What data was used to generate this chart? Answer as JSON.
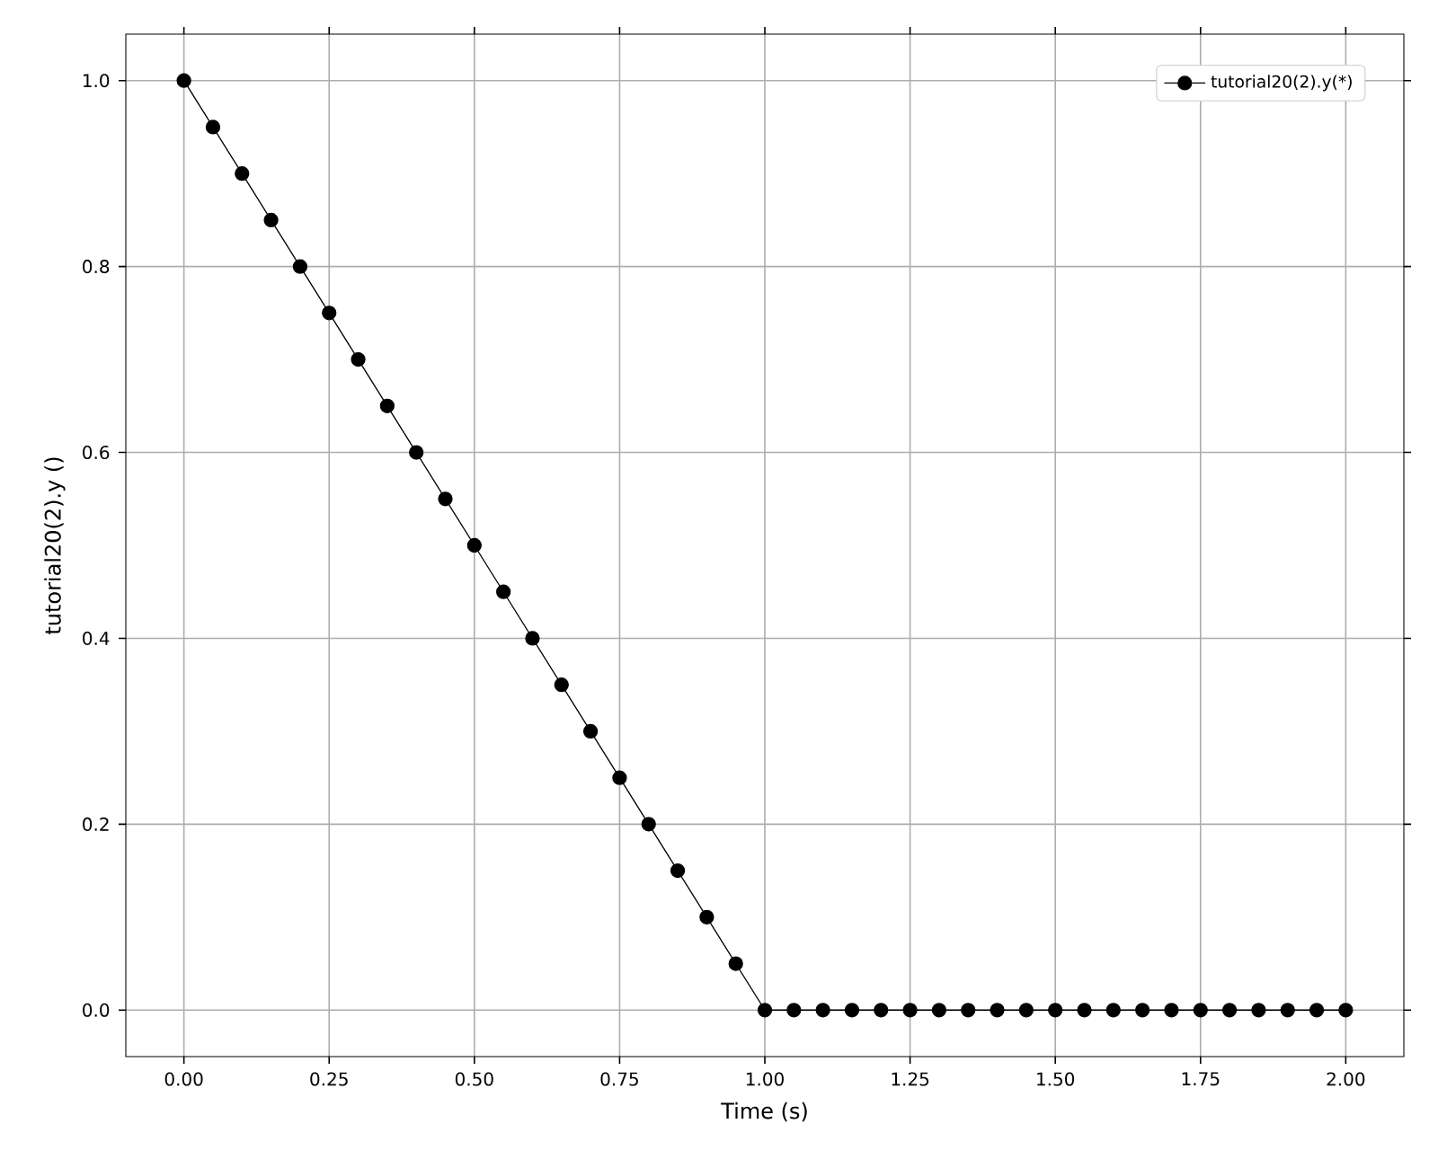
{
  "chart_data": {
    "type": "line",
    "xlabel": "Time (s)",
    "ylabel": "tutorial20(2).y ()",
    "x": [
      0.0,
      0.05,
      0.1,
      0.15,
      0.2,
      0.25,
      0.3,
      0.35,
      0.4,
      0.45,
      0.5,
      0.55,
      0.6,
      0.65,
      0.7,
      0.75,
      0.8,
      0.85,
      0.9,
      0.95,
      1.0,
      1.05,
      1.1,
      1.15,
      1.2,
      1.25,
      1.3,
      1.35,
      1.4,
      1.45,
      1.5,
      1.55,
      1.6,
      1.65,
      1.7,
      1.75,
      1.8,
      1.85,
      1.9,
      1.95,
      2.0
    ],
    "series": [
      {
        "name": "tutorial20(2).y(*)",
        "color": "#000000",
        "values": [
          1.0,
          0.95,
          0.9,
          0.85,
          0.8,
          0.75,
          0.7,
          0.65,
          0.6,
          0.55,
          0.5,
          0.45,
          0.4,
          0.35,
          0.3,
          0.25,
          0.2,
          0.15,
          0.1,
          0.05,
          0.0,
          0.0,
          0.0,
          0.0,
          0.0,
          0.0,
          0.0,
          0.0,
          0.0,
          0.0,
          0.0,
          0.0,
          0.0,
          0.0,
          0.0,
          0.0,
          0.0,
          0.0,
          0.0,
          0.0,
          0.0
        ]
      }
    ],
    "xlim": [
      -0.1,
      2.1
    ],
    "ylim": [
      -0.05,
      1.05
    ],
    "xticks": [
      {
        "value": 0,
        "label": "0.00"
      },
      {
        "value": 0.25,
        "label": "0.25"
      },
      {
        "value": 0.5,
        "label": "0.50"
      },
      {
        "value": 0.75,
        "label": "0.75"
      },
      {
        "value": 1.0,
        "label": "1.00"
      },
      {
        "value": 1.25,
        "label": "1.25"
      },
      {
        "value": 1.5,
        "label": "1.50"
      },
      {
        "value": 1.75,
        "label": "1.75"
      },
      {
        "value": 2.0,
        "label": "2.00"
      }
    ],
    "yticks": [
      {
        "value": 0,
        "label": "0.0"
      },
      {
        "value": 0.2,
        "label": "0.2"
      },
      {
        "value": 0.4,
        "label": "0.4"
      },
      {
        "value": 0.6,
        "label": "0.6"
      },
      {
        "value": 0.8,
        "label": "0.8"
      },
      {
        "value": 1.0,
        "label": "1.0"
      }
    ],
    "grid": true,
    "legend": "top right",
    "marker": "circle",
    "line_style": "solid"
  }
}
